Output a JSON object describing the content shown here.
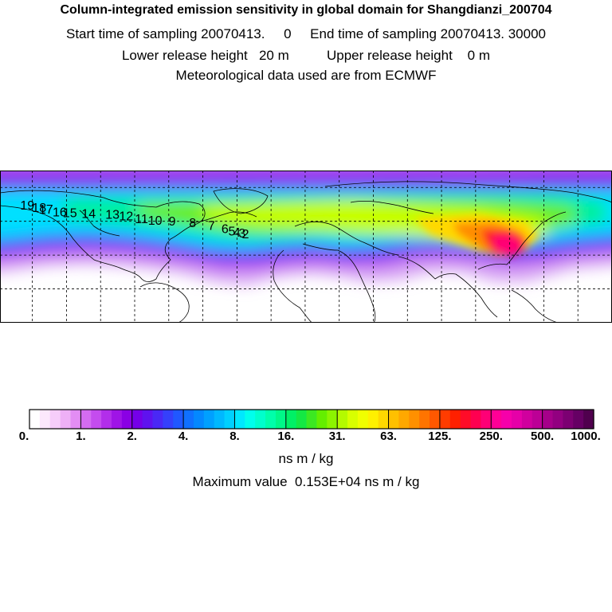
{
  "header": {
    "title": "Column-integrated emission sensitivity in global domain for Shangdianzi_200704",
    "sampling": "Start time of sampling 20070413.     0     End time of sampling 20070413. 30000",
    "release": "Lower release height   20 m          Upper release height    0 m",
    "met": "Meteorological data used are from ECMWF"
  },
  "chart_data": {
    "type": "heatmap",
    "title": "Column-integrated emission sensitivity in global domain for Shangdianzi_200704",
    "colorbar": {
      "tick_labels": [
        "0.",
        "1.",
        "2.",
        "4.",
        "8.",
        "16.",
        "31.",
        "63.",
        "125.",
        "250.",
        "500.",
        "1000."
      ],
      "unit": "ns m / kg",
      "colors": [
        "#ffffff",
        "#fce8fc",
        "#f6cdfa",
        "#eeb0f6",
        "#e38df4",
        "#d46cf1",
        "#c44cee",
        "#b22eea",
        "#9f14e6",
        "#8a00e4",
        "#7500e8",
        "#5f12ef",
        "#4a28f5",
        "#3540fb",
        "#2058ff",
        "#1070ff",
        "#0488ff",
        "#00a0ff",
        "#00b8ff",
        "#00d0ff",
        "#00e8ff",
        "#00ffec",
        "#00ffcc",
        "#00ffaa",
        "#00f888",
        "#00f066",
        "#14e844",
        "#3ce822",
        "#64ee00",
        "#8cf400",
        "#b4fa00",
        "#d8ff00",
        "#f0ff00",
        "#fff000",
        "#ffd800",
        "#ffc000",
        "#ffa800",
        "#ff9000",
        "#ff7400",
        "#ff5800",
        "#ff3c00",
        "#ff2000",
        "#ff0c28",
        "#ff0050",
        "#ff0076",
        "#ff0096",
        "#f600aa",
        "#e600a8",
        "#d0009e",
        "#bc0096",
        "#a6008a",
        "#920080",
        "#7c0072",
        "#660064",
        "#50004e"
      ]
    },
    "maximum_label": "Maximum value  0.153E+04 ns m / kg",
    "trajectory_points": [
      {
        "label": "19",
        "lon": -163.0,
        "lat": 67.0
      },
      {
        "label": "18",
        "lon": -156.0,
        "lat": 65.5
      },
      {
        "label": "17",
        "lon": -152.0,
        "lat": 64.5
      },
      {
        "label": "16",
        "lon": -144.0,
        "lat": 63.0
      },
      {
        "label": "15",
        "lon": -138.0,
        "lat": 62.5
      },
      {
        "label": "14",
        "lon": -127.0,
        "lat": 62.0
      },
      {
        "label": "13",
        "lon": -113.0,
        "lat": 61.5
      },
      {
        "label": "12",
        "lon": -105.0,
        "lat": 60.5
      },
      {
        "label": "11",
        "lon": -96.0,
        "lat": 59.0
      },
      {
        "label": "10",
        "lon": -88.0,
        "lat": 58.0
      },
      {
        "label": "9",
        "lon": -78.0,
        "lat": 57.5
      },
      {
        "label": "8",
        "lon": -66.0,
        "lat": 56.5
      },
      {
        "label": "7",
        "lon": -55.0,
        "lat": 55.0
      },
      {
        "label": "6",
        "lon": -47.0,
        "lat": 53.0
      },
      {
        "label": "5",
        "lon": -43.0,
        "lat": 51.5
      },
      {
        "label": "4",
        "lon": -40.0,
        "lat": 51.0
      },
      {
        "label": "3",
        "lon": -37.0,
        "lat": 50.5
      },
      {
        "label": "2",
        "lon": -35.0,
        "lat": 50.0
      }
    ],
    "map_extent": {
      "lon": [
        -179,
        180
      ],
      "lat": [
        0,
        90
      ]
    },
    "grid_lines": {
      "lon_step": 20,
      "lat_step": 20
    },
    "grid": true
  }
}
